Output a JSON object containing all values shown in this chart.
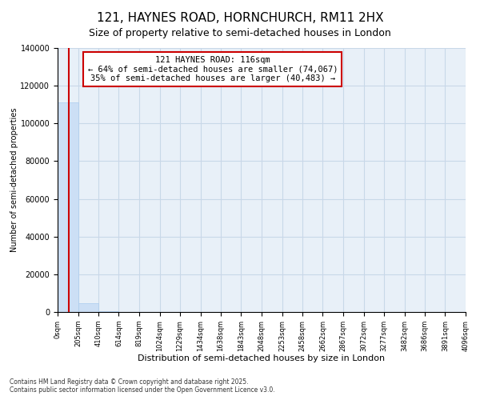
{
  "title": "121, HAYNES ROAD, HORNCHURCH, RM11 2HX",
  "subtitle": "Size of property relative to semi-detached houses in London",
  "xlabel": "Distribution of semi-detached houses by size in London",
  "ylabel": "Number of semi-detached properties",
  "annotation_title": "121 HAYNES ROAD: 116sqm",
  "annotation_line1": "← 64% of semi-detached houses are smaller (74,067)",
  "annotation_line2": "35% of semi-detached houses are larger (40,483) →",
  "property_size": 116,
  "bar_color": "#ccdff5",
  "bar_edge_color": "#aaccee",
  "property_line_color": "#cc0000",
  "annotation_box_color": "#cc0000",
  "plot_bg_color": "#e8f0f8",
  "ylim": [
    0,
    140000
  ],
  "yticks": [
    0,
    20000,
    40000,
    60000,
    80000,
    100000,
    120000,
    140000
  ],
  "bin_edges": [
    0,
    205,
    410,
    614,
    819,
    1024,
    1229,
    1434,
    1638,
    1843,
    2048,
    2253,
    2458,
    2662,
    2867,
    3072,
    3277,
    3482,
    3686,
    3891,
    4096
  ],
  "bar_heights": [
    111000,
    4500,
    400,
    120,
    60,
    35,
    20,
    12,
    8,
    6,
    5,
    4,
    3,
    3,
    2,
    2,
    1,
    1,
    1,
    1
  ],
  "footer_line1": "Contains HM Land Registry data © Crown copyright and database right 2025.",
  "footer_line2": "Contains public sector information licensed under the Open Government Licence v3.0.",
  "background_color": "#ffffff",
  "grid_color": "#c8d8e8"
}
